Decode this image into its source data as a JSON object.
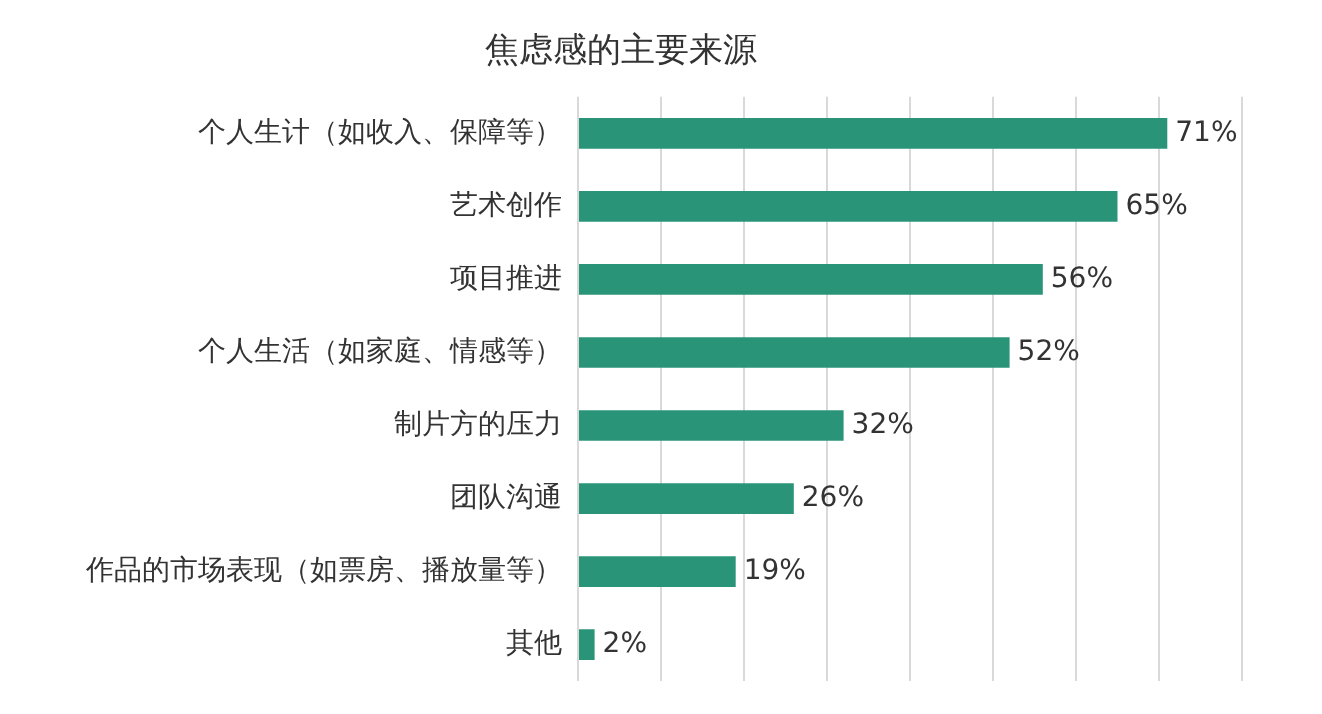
{
  "chart_data": {
    "type": "bar",
    "orientation": "horizontal",
    "title": "焦虑感的主要来源",
    "categories": [
      "个人生计（如收入、保障等）",
      "艺术创作",
      "项目推进",
      "个人生活（如家庭、情感等）",
      "制片方的压力",
      "团队沟通",
      "作品的市场表现（如票房、播放量等）",
      "其他"
    ],
    "values": [
      71,
      65,
      56,
      52,
      32,
      26,
      19,
      2
    ],
    "value_labels": [
      "71%",
      "65%",
      "56%",
      "52%",
      "32%",
      "26%",
      "19%",
      "2%"
    ],
    "color": "#2a9478",
    "xlim": [
      0,
      80
    ],
    "xticks": [
      {
        "value": 0,
        "label": null
      },
      {
        "value": 10,
        "label": null
      },
      {
        "value": 20,
        "label": null
      },
      {
        "value": 30,
        "label": null
      },
      {
        "value": 40,
        "label": null
      },
      {
        "value": 50,
        "label": null
      },
      {
        "value": 60,
        "label": null
      },
      {
        "value": 70,
        "label": null
      },
      {
        "value": 80,
        "label": null
      }
    ],
    "grid": "x",
    "tick_labels": "y",
    "legend": false
  }
}
